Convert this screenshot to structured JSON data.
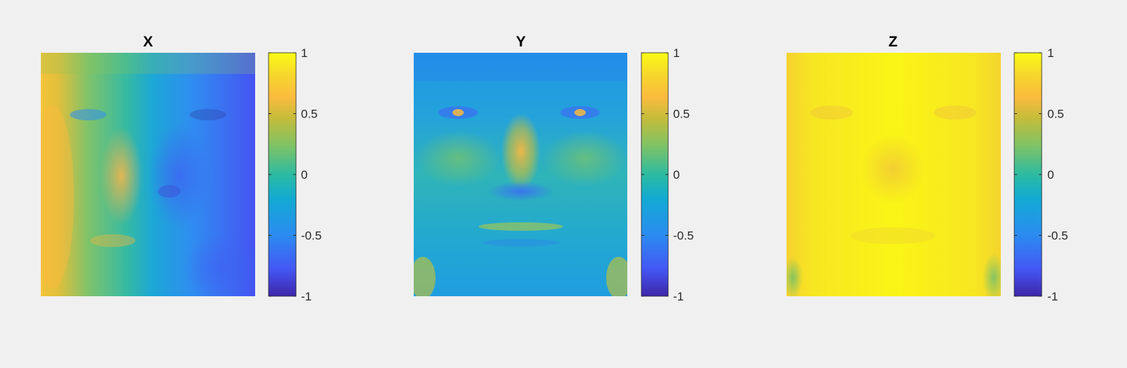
{
  "chart_data": [
    {
      "type": "heatmap",
      "title": "X",
      "image": "face surface-normal X component",
      "colormap": "parula",
      "colorbar": {
        "clim": [
          -1,
          1
        ],
        "ticks": [
          1,
          0.5,
          0,
          -0.5,
          -1
        ],
        "tick_labels": [
          "1",
          "0.5",
          "0",
          "-0.5",
          "-1"
        ]
      }
    },
    {
      "type": "heatmap",
      "title": "Y",
      "image": "face surface-normal Y component",
      "colormap": "parula",
      "colorbar": {
        "clim": [
          -1,
          1
        ],
        "ticks": [
          1,
          0.5,
          0,
          -0.5,
          -1
        ],
        "tick_labels": [
          "1",
          "0.5",
          "0",
          "-0.5",
          "-1"
        ]
      }
    },
    {
      "type": "heatmap",
      "title": "Z",
      "image": "face surface-normal Z component",
      "colormap": "parula",
      "colorbar": {
        "clim": [
          -1,
          1
        ],
        "ticks": [
          1,
          0.5,
          0,
          -0.5,
          -1
        ],
        "tick_labels": [
          "1",
          "0.5",
          "0",
          "-0.5",
          "-1"
        ]
      }
    }
  ],
  "colors": {
    "background": "#f0f0f0",
    "parula_stops": [
      "#3e26a8",
      "#4456f4",
      "#2c8bf1",
      "#12aad3",
      "#2cbba1",
      "#80c365",
      "#c4bc3a",
      "#fcbb3e",
      "#f6d72c",
      "#fbfb14"
    ]
  }
}
